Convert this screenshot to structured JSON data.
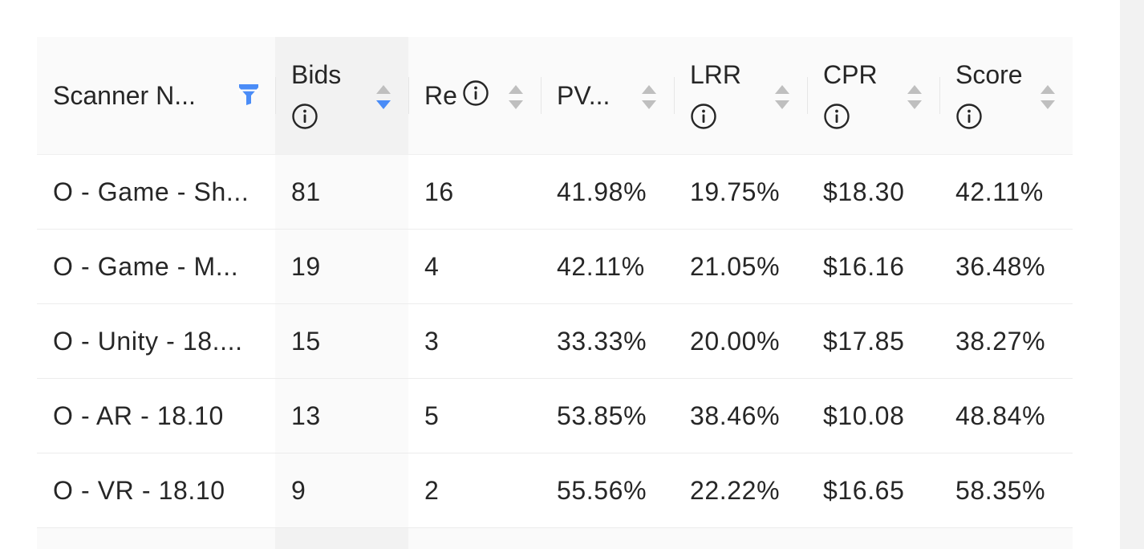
{
  "table": {
    "columns": [
      {
        "label": "Scanner N...",
        "info": false,
        "control": "filter",
        "sorted": false
      },
      {
        "label": "Bids",
        "info": true,
        "info_inline": false,
        "control": "sort",
        "sort_state": "descend",
        "sorted": true
      },
      {
        "label": "Re",
        "info": true,
        "info_inline": true,
        "control": "sort",
        "sort_state": "none",
        "sorted": false
      },
      {
        "label": "PV...",
        "info": false,
        "control": "sort",
        "sort_state": "none",
        "sorted": false
      },
      {
        "label": "LRR",
        "info": true,
        "info_inline": false,
        "control": "sort",
        "sort_state": "none",
        "sorted": false
      },
      {
        "label": "CPR",
        "info": true,
        "info_inline": false,
        "control": "sort",
        "sort_state": "none",
        "sorted": false
      },
      {
        "label": "Score",
        "info": true,
        "info_inline": false,
        "control": "sort",
        "sort_state": "none",
        "sorted": false
      }
    ],
    "rows": [
      [
        "O - Game - Sh...",
        "81",
        "16",
        "41.98%",
        "19.75%",
        "$18.30",
        "42.11%"
      ],
      [
        "O - Game - M...",
        "19",
        "4",
        "42.11%",
        "21.05%",
        "$16.16",
        "36.48%"
      ],
      [
        "O - Unity - 18....",
        "15",
        "3",
        "33.33%",
        "20.00%",
        "$17.85",
        "38.27%"
      ],
      [
        "O - AR - 18.10",
        "13",
        "5",
        "53.85%",
        "38.46%",
        "$10.08",
        "48.84%"
      ],
      [
        "O - VR - 18.10",
        "9",
        "2",
        "55.56%",
        "22.22%",
        "$16.65",
        "58.35%"
      ]
    ]
  },
  "colors": {
    "accent": "#4a8cf7",
    "sorter_inactive": "#bfbfbf",
    "header_bg": "#fafafa",
    "sorted_column_bg": "#f2f2f2"
  },
  "icons": {
    "filter": "filter-icon",
    "sort": "sort-icon",
    "info": "info-icon"
  }
}
